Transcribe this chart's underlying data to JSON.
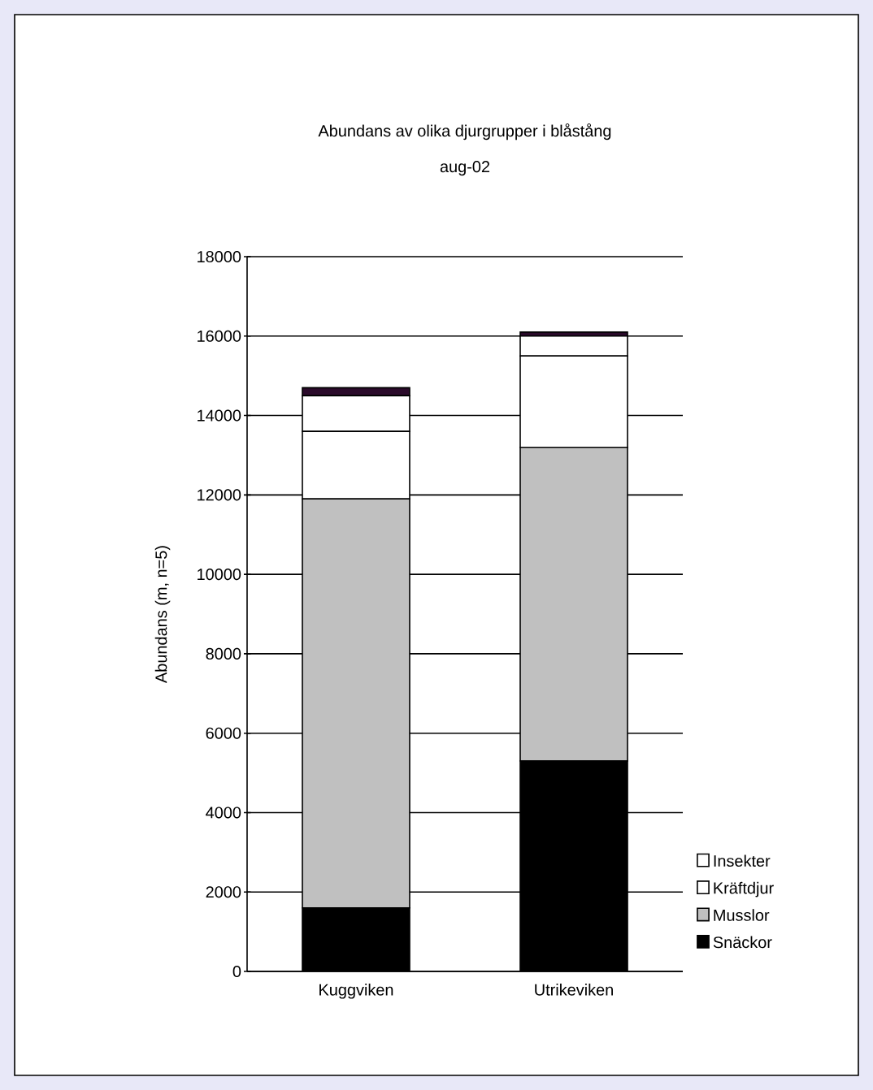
{
  "chart_data": {
    "type": "bar",
    "title": "Abundans av olika djurgrupper i blåstång",
    "subtitle": "aug-02",
    "ylabel": "Abundans (m, n=5)",
    "categories": [
      "Kuggviken",
      "Utrikeviken"
    ],
    "stacked": true,
    "ylim": [
      0,
      18000
    ],
    "yticks": [
      0,
      2000,
      4000,
      6000,
      8000,
      10000,
      12000,
      14000,
      16000,
      18000
    ],
    "grid": "y",
    "legend": "right",
    "series": [
      {
        "name": "Snäckor",
        "color": "#000000",
        "values": [
          1600,
          5300
        ]
      },
      {
        "name": "Musslor",
        "color": "#c0c0c0",
        "values": [
          10300,
          7900
        ]
      },
      {
        "name": "Kräftdjur",
        "color": "#ffffff",
        "values": [
          1700,
          2300
        ]
      },
      {
        "name": "Insekter",
        "color": "#ffffff",
        "values": [
          900,
          500
        ]
      },
      {
        "color": "#2a0a2a",
        "values": [
          200,
          100
        ]
      }
    ]
  }
}
